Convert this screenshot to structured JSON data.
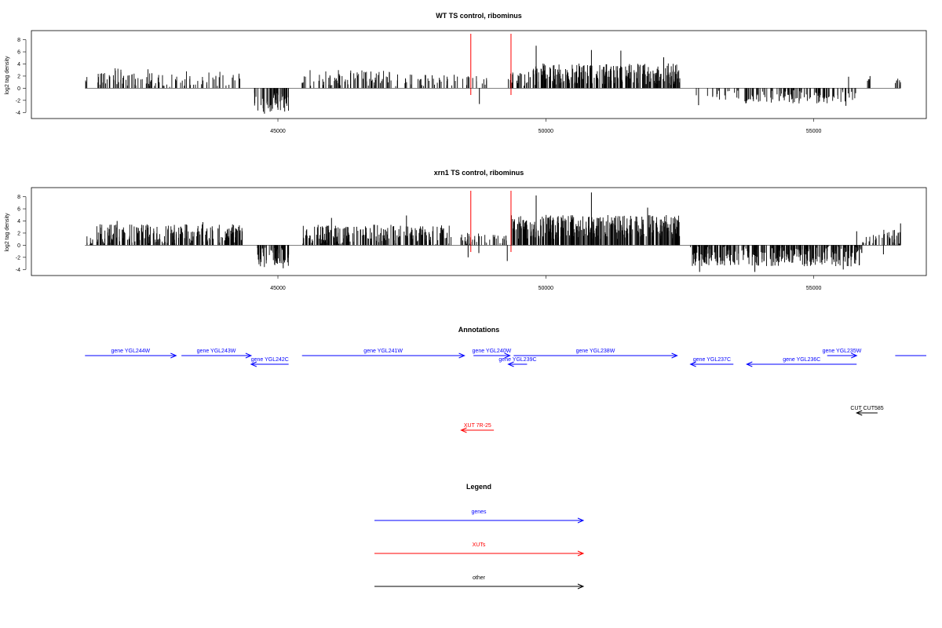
{
  "colors": {
    "genes": "#0000ff",
    "xuts": "#ff0000",
    "other": "#000000",
    "marker": "#ff0000",
    "bars": "#000000"
  },
  "chart_data": [
    {
      "type": "bar",
      "title": "WT TS control, ribominus",
      "ylabel": "log2 tag density",
      "xlabel": "",
      "xlim": [
        40400,
        57100
      ],
      "ylim": [
        -5,
        9.5
      ],
      "xticks": [
        45000,
        50000,
        55000
      ],
      "xtick_labels": [
        "45000",
        "50000",
        "55000"
      ],
      "yticks": [
        -4,
        -2,
        0,
        2,
        4,
        6,
        8
      ],
      "ytick_labels": [
        "-4",
        "-2",
        "0",
        "2",
        "4",
        "6",
        "8"
      ],
      "markers_x": [
        48600,
        49350
      ],
      "seed": 11,
      "segments": [
        {
          "start": 41400,
          "end": 41450,
          "sign": 1,
          "density": 0.6,
          "base": 1.5,
          "spread": 0.5,
          "peaks": []
        },
        {
          "start": 41600,
          "end": 42900,
          "sign": 1,
          "density": 0.45,
          "base": 1.8,
          "spread": 1.5,
          "peaks": []
        },
        {
          "start": 42900,
          "end": 44300,
          "sign": 1,
          "density": 0.28,
          "base": 1.5,
          "spread": 1.3,
          "peaks": []
        },
        {
          "start": 44550,
          "end": 45200,
          "sign": -1,
          "density": 0.8,
          "base": 2.3,
          "spread": 1.6,
          "peaks": [
            [
              44750,
              -4.2
            ]
          ]
        },
        {
          "start": 45450,
          "end": 47150,
          "sign": 1,
          "density": 0.45,
          "base": 1.7,
          "spread": 1.3,
          "peaks": []
        },
        {
          "start": 47150,
          "end": 48300,
          "sign": 1,
          "density": 0.3,
          "base": 1.3,
          "spread": 1.0,
          "peaks": []
        },
        {
          "start": 48300,
          "end": 48900,
          "sign": 1,
          "density": 0.25,
          "base": 1.2,
          "spread": 0.8,
          "peaks": [
            [
              48760,
              -2.6
            ]
          ]
        },
        {
          "start": 49250,
          "end": 49700,
          "sign": 1,
          "density": 0.5,
          "base": 1.5,
          "spread": 1.2,
          "peaks": []
        },
        {
          "start": 49700,
          "end": 52500,
          "sign": 1,
          "density": 1.0,
          "base": 2.3,
          "spread": 1.8,
          "peaks": [
            [
              49820,
              7.0
            ],
            [
              50850,
              6.3
            ],
            [
              51400,
              6.2
            ],
            [
              52200,
              5.1
            ]
          ]
        },
        {
          "start": 52800,
          "end": 53600,
          "sign": -1,
          "density": 0.2,
          "base": 1.2,
          "spread": 0.8,
          "peaks": [
            [
              52850,
              -2.8
            ]
          ]
        },
        {
          "start": 53700,
          "end": 55800,
          "sign": -1,
          "density": 0.5,
          "base": 1.4,
          "spread": 1.1,
          "peaks": [
            [
              55600,
              -2.9
            ]
          ]
        },
        {
          "start": 56000,
          "end": 56050,
          "sign": 1,
          "density": 0.8,
          "base": 1.5,
          "spread": 0.5,
          "peaks": [
            [
              55650,
              1.9
            ],
            [
              56050,
              2.0
            ]
          ]
        },
        {
          "start": 56520,
          "end": 56620,
          "sign": 1,
          "density": 0.7,
          "base": 1.1,
          "spread": 0.5,
          "peaks": []
        }
      ]
    },
    {
      "type": "bar",
      "title": "xrn1 TS control, ribominus",
      "ylabel": "log2 tag density",
      "xlabel": "",
      "xlim": [
        40400,
        57100
      ],
      "ylim": [
        -5,
        9.5
      ],
      "xticks": [
        45000,
        50000,
        55000
      ],
      "xtick_labels": [
        "45000",
        "50000",
        "55000"
      ],
      "yticks": [
        -4,
        -2,
        0,
        2,
        4,
        6,
        8
      ],
      "ytick_labels": [
        "-4",
        "-2",
        "0",
        "2",
        "4",
        "6",
        "8"
      ],
      "markers_x": [
        48600,
        49350
      ],
      "seed": 29,
      "segments": [
        {
          "start": 41400,
          "end": 41550,
          "sign": 1,
          "density": 0.6,
          "base": 0.8,
          "spread": 0.8,
          "peaks": []
        },
        {
          "start": 41600,
          "end": 44400,
          "sign": 1,
          "density": 0.85,
          "base": 1.9,
          "spread": 1.6,
          "peaks": [
            [
              42000,
              4.0
            ],
            [
              43600,
              3.8
            ]
          ]
        },
        {
          "start": 44600,
          "end": 45250,
          "sign": -1,
          "density": 0.9,
          "base": 2.0,
          "spread": 1.6,
          "peaks": [
            [
              45100,
              -3.8
            ]
          ]
        },
        {
          "start": 45450,
          "end": 48250,
          "sign": 1,
          "density": 0.8,
          "base": 1.8,
          "spread": 1.6,
          "peaks": [
            [
              46000,
              4.5
            ],
            [
              47400,
              4.9
            ]
          ]
        },
        {
          "start": 48400,
          "end": 48900,
          "sign": 1,
          "density": 0.5,
          "base": 1.2,
          "spread": 1.0,
          "peaks": [
            [
              48550,
              -2.0
            ],
            [
              48750,
              -1.3
            ]
          ]
        },
        {
          "start": 48950,
          "end": 49300,
          "sign": 1,
          "density": 0.4,
          "base": 1.0,
          "spread": 0.8,
          "peaks": [
            [
              49280,
              -2.6
            ]
          ]
        },
        {
          "start": 49350,
          "end": 52500,
          "sign": 1,
          "density": 1.25,
          "base": 3.0,
          "spread": 2.0,
          "peaks": [
            [
              49820,
              8.2
            ],
            [
              50850,
              8.7
            ],
            [
              51900,
              6.2
            ]
          ]
        },
        {
          "start": 52650,
          "end": 53600,
          "sign": -1,
          "density": 0.9,
          "base": 1.8,
          "spread": 1.7,
          "peaks": [
            [
              52870,
              -4.4
            ],
            [
              53200,
              -3.3
            ]
          ]
        },
        {
          "start": 53650,
          "end": 55900,
          "sign": -1,
          "density": 1.0,
          "base": 1.8,
          "spread": 1.7,
          "peaks": [
            [
              53900,
              -4.4
            ],
            [
              55550,
              -4.0
            ]
          ]
        },
        {
          "start": 55900,
          "end": 56300,
          "sign": 1,
          "density": 0.35,
          "base": 0.8,
          "spread": 1.0,
          "peaks": [
            [
              55800,
              2.3
            ],
            [
              56300,
              -1.5
            ],
            [
              56150,
              0.9
            ]
          ]
        },
        {
          "start": 56300,
          "end": 56620,
          "sign": 1,
          "density": 0.8,
          "base": 1.4,
          "spread": 1.3,
          "peaks": [
            [
              56620,
              3.6
            ]
          ]
        }
      ]
    }
  ],
  "annotations": {
    "title": "Annotations",
    "features": [
      {
        "label": "gene YGL244W",
        "kind": "gene",
        "start": 41400,
        "end": 43100,
        "row": 1,
        "dir": "+"
      },
      {
        "label": "gene YGL243W",
        "kind": "gene",
        "start": 43200,
        "end": 44500,
        "row": 1,
        "dir": "+"
      },
      {
        "label": "gene YGL242C",
        "kind": "gene",
        "start": 44500,
        "end": 45200,
        "row": 2,
        "dir": "-"
      },
      {
        "label": "gene YGL241W",
        "kind": "gene",
        "start": 45450,
        "end": 48480,
        "row": 1,
        "dir": "+"
      },
      {
        "label": "gene YGL240W",
        "kind": "gene",
        "start": 48650,
        "end": 49330,
        "row": 1,
        "dir": "+"
      },
      {
        "label": "gene YGL239C",
        "kind": "gene",
        "start": 49300,
        "end": 49650,
        "row": 2,
        "dir": "-"
      },
      {
        "label": "gene YGL238W",
        "kind": "gene",
        "start": 49400,
        "end": 52450,
        "row": 1,
        "dir": "+"
      },
      {
        "label": "gene YGL237C",
        "kind": "gene",
        "start": 52700,
        "end": 53500,
        "row": 2,
        "dir": "-"
      },
      {
        "label": "gene YGL236C",
        "kind": "gene",
        "start": 53750,
        "end": 55800,
        "row": 2,
        "dir": "-"
      },
      {
        "label": "gene YGL235W",
        "kind": "gene",
        "start": 55250,
        "end": 55800,
        "row": 1,
        "dir": "+"
      },
      {
        "label": "",
        "kind": "gene",
        "start": 56520,
        "end": 57100,
        "row": 1,
        "dir": "+"
      },
      {
        "label": "CUT CUT585",
        "kind": "other",
        "start": 55800,
        "end": 56190,
        "row": 3,
        "dir": "-"
      },
      {
        "label": "XUT 7R-25",
        "kind": "xut",
        "start": 48420,
        "end": 49030,
        "row": 4,
        "dir": "-"
      }
    ]
  },
  "legend": {
    "title": "Legend",
    "items": [
      {
        "label": "genes",
        "kind": "gene"
      },
      {
        "label": "XUTs",
        "kind": "xut"
      },
      {
        "label": "other",
        "kind": "other"
      }
    ]
  }
}
